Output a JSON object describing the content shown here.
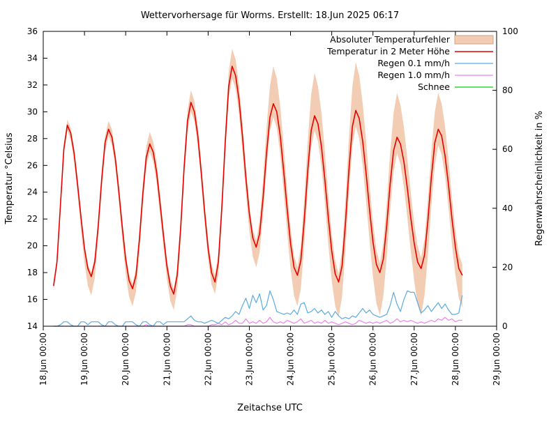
{
  "page": {
    "background": "#ffffff"
  },
  "chart_data": {
    "type": "line",
    "title": "Wettervorhersage für Worms. Erstellt: 18.Jun 2025 06:17",
    "x_axis": {
      "label": "Zeitachse UTC",
      "range_hours": [
        0,
        264
      ],
      "tick_positions_hours": [
        0,
        24,
        48,
        72,
        96,
        120,
        144,
        168,
        192,
        216,
        240,
        264
      ],
      "tick_labels": [
        "18.Jun 00:00",
        "19.Jun 00:00",
        "20.Jun 00:00",
        "21.Jun 00:00",
        "22.Jun 00:00",
        "23.Jun 00:00",
        "24.Jun 00:00",
        "25.Jun 00:00",
        "26.Jun 00:00",
        "27.Jun 00:00",
        "28.Jun 00:00",
        "29.Jun 00:00"
      ]
    },
    "y_left": {
      "label": "Temperatur °Celsius",
      "range": [
        14,
        36
      ],
      "ticks": [
        14,
        16,
        18,
        20,
        22,
        24,
        26,
        28,
        30,
        32,
        34,
        36
      ]
    },
    "y_right": {
      "label": "Regenwahrscheinlichkeit in %",
      "range": [
        0,
        100
      ],
      "ticks": [
        0,
        20,
        40,
        60,
        80,
        100
      ]
    },
    "legend": {
      "position": "top-right-inside",
      "entries": [
        {
          "label": "Absoluter Temperaturfehler",
          "swatch": "band",
          "color": "#f2cdb4"
        },
        {
          "label": "Temperatur in 2 Meter Höhe",
          "swatch": "line",
          "color": "#e60000"
        },
        {
          "label": "Regen 0.1 mm/h",
          "swatch": "line",
          "color": "#5babdf"
        },
        {
          "label": "Regen 1.0 mm/h",
          "swatch": "line",
          "color": "#ee82ee"
        },
        {
          "label": "Schnee",
          "swatch": "line",
          "color": "#00d400"
        }
      ]
    },
    "colors": {
      "background": "#ffffff",
      "border": "#000000",
      "error_band_fill": "#f2cdb4",
      "error_band_legend_border": "#cfa380",
      "temperature_line": "#e60000",
      "rain_01_line": "#5babdf",
      "rain_10_line": "#ee82ee",
      "snow_line": "#00d400"
    },
    "series": {
      "hours_utc_from_18jun_0000": [
        6,
        8,
        10,
        12,
        14,
        16,
        18,
        20,
        22,
        24,
        26,
        28,
        30,
        32,
        34,
        36,
        38,
        40,
        42,
        44,
        46,
        48,
        50,
        52,
        54,
        56,
        58,
        60,
        62,
        64,
        66,
        68,
        70,
        72,
        74,
        76,
        78,
        80,
        82,
        84,
        86,
        88,
        90,
        92,
        94,
        96,
        98,
        100,
        102,
        104,
        106,
        108,
        110,
        112,
        114,
        116,
        118,
        120,
        122,
        124,
        126,
        128,
        130,
        132,
        134,
        136,
        138,
        140,
        142,
        144,
        146,
        148,
        150,
        152,
        154,
        156,
        158,
        160,
        162,
        164,
        166,
        168,
        170,
        172,
        174,
        176,
        178,
        180,
        182,
        184,
        186,
        188,
        190,
        192,
        194,
        196,
        198,
        200,
        202,
        204,
        206,
        208,
        210,
        212,
        214,
        216,
        218,
        220,
        222,
        224,
        226,
        228,
        230,
        232,
        234,
        236,
        238,
        240,
        242,
        244
      ],
      "temperature_2m_c": [
        17.0,
        18.8,
        23.0,
        27.2,
        29.0,
        28.4,
        26.9,
        24.6,
        22.1,
        19.8,
        18.3,
        17.7,
        18.8,
        21.5,
        24.9,
        27.7,
        28.7,
        28.1,
        26.5,
        24.1,
        21.4,
        19.0,
        17.4,
        16.8,
        17.8,
        20.5,
        23.9,
        26.6,
        27.6,
        27.0,
        25.5,
        23.2,
        20.8,
        18.5,
        17.0,
        16.4,
        17.8,
        21.3,
        25.8,
        29.3,
        30.7,
        30.0,
        28.2,
        25.5,
        22.5,
        19.8,
        18.0,
        17.3,
        18.8,
        22.9,
        27.8,
        31.9,
        33.4,
        32.7,
        30.9,
        28.2,
        25.1,
        22.4,
        20.6,
        19.9,
        20.9,
        23.6,
        26.9,
        29.6,
        30.6,
        30.0,
        28.2,
        25.6,
        22.8,
        20.2,
        18.4,
        17.8,
        18.9,
        21.9,
        25.6,
        28.6,
        29.7,
        29.1,
        27.4,
        24.9,
        22.1,
        19.6,
        17.9,
        17.3,
        18.5,
        21.7,
        25.7,
        28.9,
        30.1,
        29.5,
        27.8,
        25.4,
        22.7,
        20.3,
        18.6,
        18.0,
        19.0,
        21.5,
        24.6,
        27.1,
        28.1,
        27.6,
        26.3,
        24.3,
        22.1,
        20.2,
        18.8,
        18.3,
        19.3,
        21.9,
        25.1,
        27.7,
        28.7,
        28.2,
        26.7,
        24.5,
        22.0,
        19.9,
        18.3,
        17.8
      ],
      "error_band_upper_c_offset": [
        0.3,
        0.3,
        0.4,
        0.4,
        0.4,
        0.4,
        0.4,
        0.4,
        0.3,
        0.3,
        0.3,
        0.3,
        0.4,
        0.4,
        0.5,
        0.5,
        0.6,
        0.6,
        0.5,
        0.5,
        0.5,
        0.5,
        0.4,
        0.4,
        0.5,
        0.6,
        0.7,
        0.8,
        0.9,
        0.8,
        0.8,
        0.7,
        0.6,
        0.5,
        0.5,
        0.4,
        0.5,
        0.6,
        0.7,
        0.8,
        0.9,
        0.8,
        0.8,
        0.7,
        0.7,
        0.6,
        0.6,
        0.5,
        0.7,
        0.8,
        1.0,
        1.1,
        1.3,
        1.2,
        1.1,
        1.0,
        0.8,
        0.7,
        0.6,
        0.5,
        1.0,
        1.4,
        1.9,
        2.3,
        2.8,
        2.5,
        2.2,
        1.9,
        1.5,
        1.2,
        0.9,
        0.6,
        1.1,
        1.6,
        2.2,
        2.7,
        3.2,
        2.8,
        2.5,
        2.1,
        1.7,
        1.3,
        1.0,
        0.6,
        1.2,
        1.8,
        2.4,
        3.0,
        3.6,
        3.2,
        2.8,
        2.4,
        1.9,
        1.5,
        1.1,
        0.7,
        1.2,
        1.7,
        2.3,
        2.8,
        3.3,
        2.9,
        2.6,
        2.2,
        1.9,
        1.5,
        1.2,
        0.8,
        1.2,
        1.6,
        1.9,
        2.3,
        2.7,
        2.4,
        2.2,
        1.9,
        1.6,
        1.3,
        1.1,
        0.8
      ],
      "error_band_lower_c_offset": [
        0.3,
        0.3,
        0.4,
        0.4,
        0.4,
        0.5,
        0.7,
        0.8,
        1.0,
        1.1,
        1.3,
        1.4,
        1.2,
        1.0,
        0.9,
        0.7,
        0.5,
        0.6,
        0.7,
        0.8,
        1.0,
        1.1,
        1.2,
        1.3,
        1.2,
        1.0,
        0.9,
        0.7,
        0.6,
        0.7,
        0.8,
        0.9,
        0.9,
        1.0,
        1.1,
        1.2,
        1.1,
        1.0,
        0.9,
        0.8,
        0.7,
        0.7,
        0.8,
        0.8,
        0.8,
        0.8,
        0.9,
        0.9,
        0.9,
        0.9,
        0.9,
        0.9,
        0.9,
        1.0,
        1.1,
        1.2,
        1.2,
        1.3,
        1.4,
        1.5,
        1.4,
        1.3,
        1.2,
        1.1,
        1.0,
        1.2,
        1.4,
        1.6,
        1.7,
        1.9,
        2.1,
        2.3,
        2.1,
        1.8,
        1.6,
        1.3,
        1.1,
        1.3,
        1.5,
        1.7,
        2.0,
        2.2,
        2.4,
        2.6,
        2.3,
        2.0,
        1.8,
        1.5,
        1.2,
        1.5,
        1.8,
        2.1,
        2.3,
        2.6,
        2.9,
        3.2,
        2.8,
        2.4,
        2.0,
        1.6,
        1.2,
        1.5,
        1.9,
        2.2,
        2.5,
        2.8,
        3.2,
        3.5,
        3.0,
        2.6,
        2.1,
        1.7,
        1.2,
        1.4,
        1.5,
        1.7,
        1.9,
        2.1,
        2.2,
        2.4
      ],
      "rain_0_1_mmh_probability_pct": [
        0,
        0,
        0.5,
        1.5,
        1.5,
        0.5,
        0,
        0,
        1.5,
        1.5,
        0.5,
        1.5,
        1.5,
        1.5,
        0.5,
        0,
        1.5,
        1.5,
        0.5,
        0,
        0,
        1.5,
        1.5,
        1.5,
        0.5,
        0,
        1.5,
        1.5,
        0.5,
        0,
        1.5,
        1.5,
        0.5,
        1.5,
        1.5,
        1.5,
        1.5,
        1.5,
        1.5,
        2.5,
        3.5,
        2.0,
        1.5,
        1.5,
        1.0,
        1.5,
        2.0,
        1.5,
        1.0,
        2.0,
        3.0,
        2.5,
        3.5,
        5.0,
        4.0,
        7.0,
        9.5,
        6.0,
        10.5,
        8.0,
        11.0,
        5.5,
        7.0,
        12.0,
        9.0,
        5.0,
        4.5,
        4.0,
        4.5,
        4.0,
        5.5,
        4.0,
        7.5,
        8.0,
        4.5,
        5.0,
        6.0,
        4.5,
        5.5,
        4.0,
        5.0,
        3.0,
        5.0,
        3.5,
        2.5,
        3.0,
        2.5,
        3.5,
        3.0,
        4.5,
        6.0,
        4.5,
        5.5,
        4.0,
        3.5,
        3.0,
        3.5,
        4.0,
        7.0,
        11.5,
        7.5,
        5.0,
        9.0,
        12.0,
        11.5,
        11.5,
        8.0,
        4.5,
        5.5,
        7.0,
        5.0,
        6.5,
        8.0,
        6.0,
        7.5,
        5.5,
        4.0,
        4.0,
        4.5,
        10.5
      ],
      "rain_1_0_mmh_probability_pct": [
        0,
        0,
        0,
        0,
        0,
        0,
        0,
        0,
        0,
        0,
        0,
        0,
        0,
        0,
        0,
        0,
        0,
        0,
        0,
        0,
        0,
        0,
        0,
        0,
        0,
        0,
        0,
        0.5,
        0,
        0,
        0,
        0,
        0,
        0,
        0,
        0,
        0,
        0,
        0,
        0.5,
        0.5,
        0,
        0,
        0,
        0,
        0,
        0.5,
        0.5,
        1.0,
        0.5,
        1.5,
        0.5,
        1.0,
        2.0,
        1.0,
        1.0,
        2.5,
        1.0,
        1.5,
        1.0,
        2.0,
        1.0,
        1.5,
        3.0,
        1.5,
        1.0,
        1.5,
        1.0,
        2.0,
        1.5,
        1.0,
        1.5,
        2.5,
        1.0,
        1.5,
        2.0,
        1.0,
        1.5,
        1.0,
        2.0,
        1.0,
        1.5,
        1.0,
        0.5,
        1.0,
        1.5,
        1.0,
        0.5,
        1.0,
        2.0,
        1.5,
        1.0,
        1.5,
        1.0,
        1.5,
        1.0,
        1.5,
        2.0,
        1.0,
        1.5,
        2.5,
        1.5,
        2.0,
        1.5,
        2.0,
        1.5,
        1.0,
        1.5,
        1.0,
        1.5,
        2.0,
        1.5,
        2.5,
        2.0,
        3.0,
        2.0,
        2.5,
        1.5,
        2.0,
        2.0
      ],
      "snow_probability_pct_constant": 0
    }
  }
}
